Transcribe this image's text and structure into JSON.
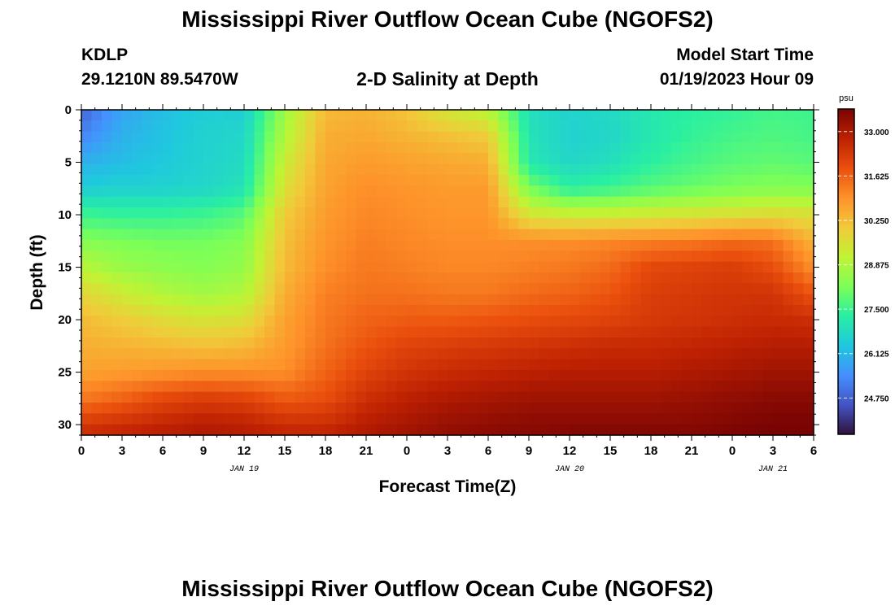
{
  "header": {
    "title": "Mississippi River Outflow Ocean Cube (NGOFS2)",
    "station_id": "KDLP",
    "station_coords": "29.1210N  89.5470W",
    "chart_title": "2-D Salinity at Depth",
    "model_label": "Model Start Time",
    "model_time": "01/19/2023 Hour 09"
  },
  "footer": {
    "title": "Mississippi River Outflow Ocean Cube (NGOFS2)"
  },
  "chart_data": {
    "type": "heatmap",
    "title": "2-D Salinity at Depth",
    "xlabel": "Forecast Time(Z)",
    "ylabel": "Depth (ft)",
    "x_tick_labels": [
      "0",
      "3",
      "6",
      "9",
      "12",
      "15",
      "18",
      "21",
      "0",
      "3",
      "6",
      "9",
      "12",
      "15",
      "18",
      "21",
      "0",
      "3",
      "6"
    ],
    "x_date_labels": [
      {
        "label": "JAN 19",
        "hour_index": 12
      },
      {
        "label": "JAN 20",
        "hour_index": 36
      },
      {
        "label": "JAN 21",
        "hour_index": 51
      }
    ],
    "x_range_hours": [
      0,
      54
    ],
    "y_ticks": [
      0,
      5,
      10,
      15,
      20,
      25,
      30
    ],
    "ylim": [
      0,
      31
    ],
    "y_inverted": true,
    "colorbar": {
      "unit": "psu",
      "range": [
        23.625,
        33.7
      ],
      "ticks": [
        33.0,
        31.625,
        30.25,
        28.875,
        27.5,
        26.125,
        24.75
      ],
      "tick_labels": [
        "33.000",
        "31.625",
        "30.250",
        "28.875",
        "27.500",
        "26.125",
        "24.750"
      ],
      "colormap": [
        "#30123b",
        "#4454c4",
        "#4490fe",
        "#1fc8de",
        "#29efa2",
        "#7dff56",
        "#c1f334",
        "#f1ca3a",
        "#fe922a",
        "#ea4f0d",
        "#be2102",
        "#7a0403"
      ]
    },
    "hours_sampled": [
      0,
      3,
      6,
      9,
      12,
      15,
      18,
      21,
      24,
      27,
      30,
      33,
      36,
      39,
      42,
      45,
      48,
      51,
      54
    ],
    "depths_sampled_ft": [
      0,
      2.5,
      5,
      7.5,
      10,
      12.5,
      15,
      17.5,
      20,
      22.5,
      25,
      27.5,
      30,
      31
    ],
    "salinity_psu": [
      [
        24.8,
        25.8,
        26.2,
        26.5,
        26.5,
        28.6,
        30.3,
        30.4,
        30.1,
        29.4,
        29.0,
        26.9,
        26.6,
        26.8,
        27.1,
        27.3,
        27.4,
        27.6,
        27.5
      ],
      [
        25.3,
        26.0,
        26.3,
        26.6,
        26.7,
        28.9,
        30.5,
        30.6,
        30.4,
        30.2,
        30.0,
        27.0,
        26.6,
        26.7,
        27.1,
        27.4,
        27.6,
        27.7,
        27.6
      ],
      [
        26.0,
        26.2,
        26.4,
        26.6,
        26.8,
        29.3,
        30.6,
        30.8,
        30.7,
        30.6,
        30.5,
        27.1,
        26.7,
        26.9,
        27.3,
        27.6,
        27.8,
        27.9,
        27.8
      ],
      [
        26.5,
        26.6,
        26.6,
        26.7,
        27.0,
        29.6,
        30.7,
        31.0,
        30.9,
        30.8,
        30.8,
        28.2,
        27.3,
        27.5,
        27.8,
        28.0,
        28.2,
        28.3,
        28.3
      ],
      [
        27.5,
        27.4,
        27.4,
        27.5,
        27.8,
        30.0,
        30.8,
        31.1,
        31.0,
        30.9,
        30.9,
        29.5,
        29.3,
        29.3,
        29.4,
        29.5,
        29.6,
        29.7,
        29.6
      ],
      [
        28.3,
        28.2,
        28.1,
        28.1,
        28.3,
        30.2,
        30.9,
        31.2,
        31.1,
        31.0,
        31.0,
        31.0,
        31.0,
        31.1,
        31.2,
        31.3,
        31.5,
        31.4,
        30.4
      ],
      [
        29.0,
        28.6,
        28.4,
        28.3,
        28.5,
        30.3,
        31.0,
        31.3,
        31.2,
        31.1,
        31.1,
        31.2,
        31.3,
        31.5,
        32.0,
        32.1,
        32.2,
        31.9,
        31.0
      ],
      [
        29.8,
        29.3,
        28.9,
        28.7,
        28.9,
        30.5,
        31.2,
        31.4,
        31.4,
        31.3,
        31.3,
        31.5,
        31.6,
        31.8,
        32.2,
        32.3,
        32.4,
        32.4,
        31.8
      ],
      [
        30.3,
        30.0,
        29.7,
        29.5,
        29.6,
        30.7,
        31.3,
        31.6,
        31.7,
        31.7,
        31.8,
        31.9,
        32.0,
        32.1,
        32.3,
        32.4,
        32.5,
        32.6,
        32.5
      ],
      [
        30.5,
        30.4,
        30.3,
        30.2,
        30.3,
        30.8,
        31.4,
        31.8,
        32.1,
        32.2,
        32.3,
        32.4,
        32.5,
        32.6,
        32.6,
        32.7,
        32.8,
        32.9,
        32.9
      ],
      [
        30.7,
        30.8,
        30.9,
        31.0,
        31.0,
        31.0,
        31.6,
        32.1,
        32.4,
        32.6,
        32.7,
        32.8,
        32.9,
        32.9,
        32.9,
        33.0,
        33.1,
        33.2,
        33.2
      ],
      [
        31.3,
        31.6,
        32.0,
        32.2,
        32.1,
        31.7,
        31.9,
        32.5,
        32.8,
        33.0,
        33.1,
        33.2,
        33.2,
        33.2,
        33.2,
        33.3,
        33.4,
        33.5,
        33.5
      ],
      [
        32.3,
        32.5,
        32.7,
        32.9,
        32.8,
        32.5,
        32.5,
        32.9,
        33.1,
        33.3,
        33.4,
        33.5,
        33.5,
        33.5,
        33.5,
        33.5,
        33.6,
        33.7,
        33.7
      ],
      [
        32.6,
        32.8,
        32.9,
        33.0,
        32.9,
        32.8,
        32.8,
        33.0,
        33.2,
        33.4,
        33.5,
        33.5,
        33.6,
        33.6,
        33.6,
        33.6,
        33.7,
        33.7,
        33.7
      ]
    ]
  }
}
